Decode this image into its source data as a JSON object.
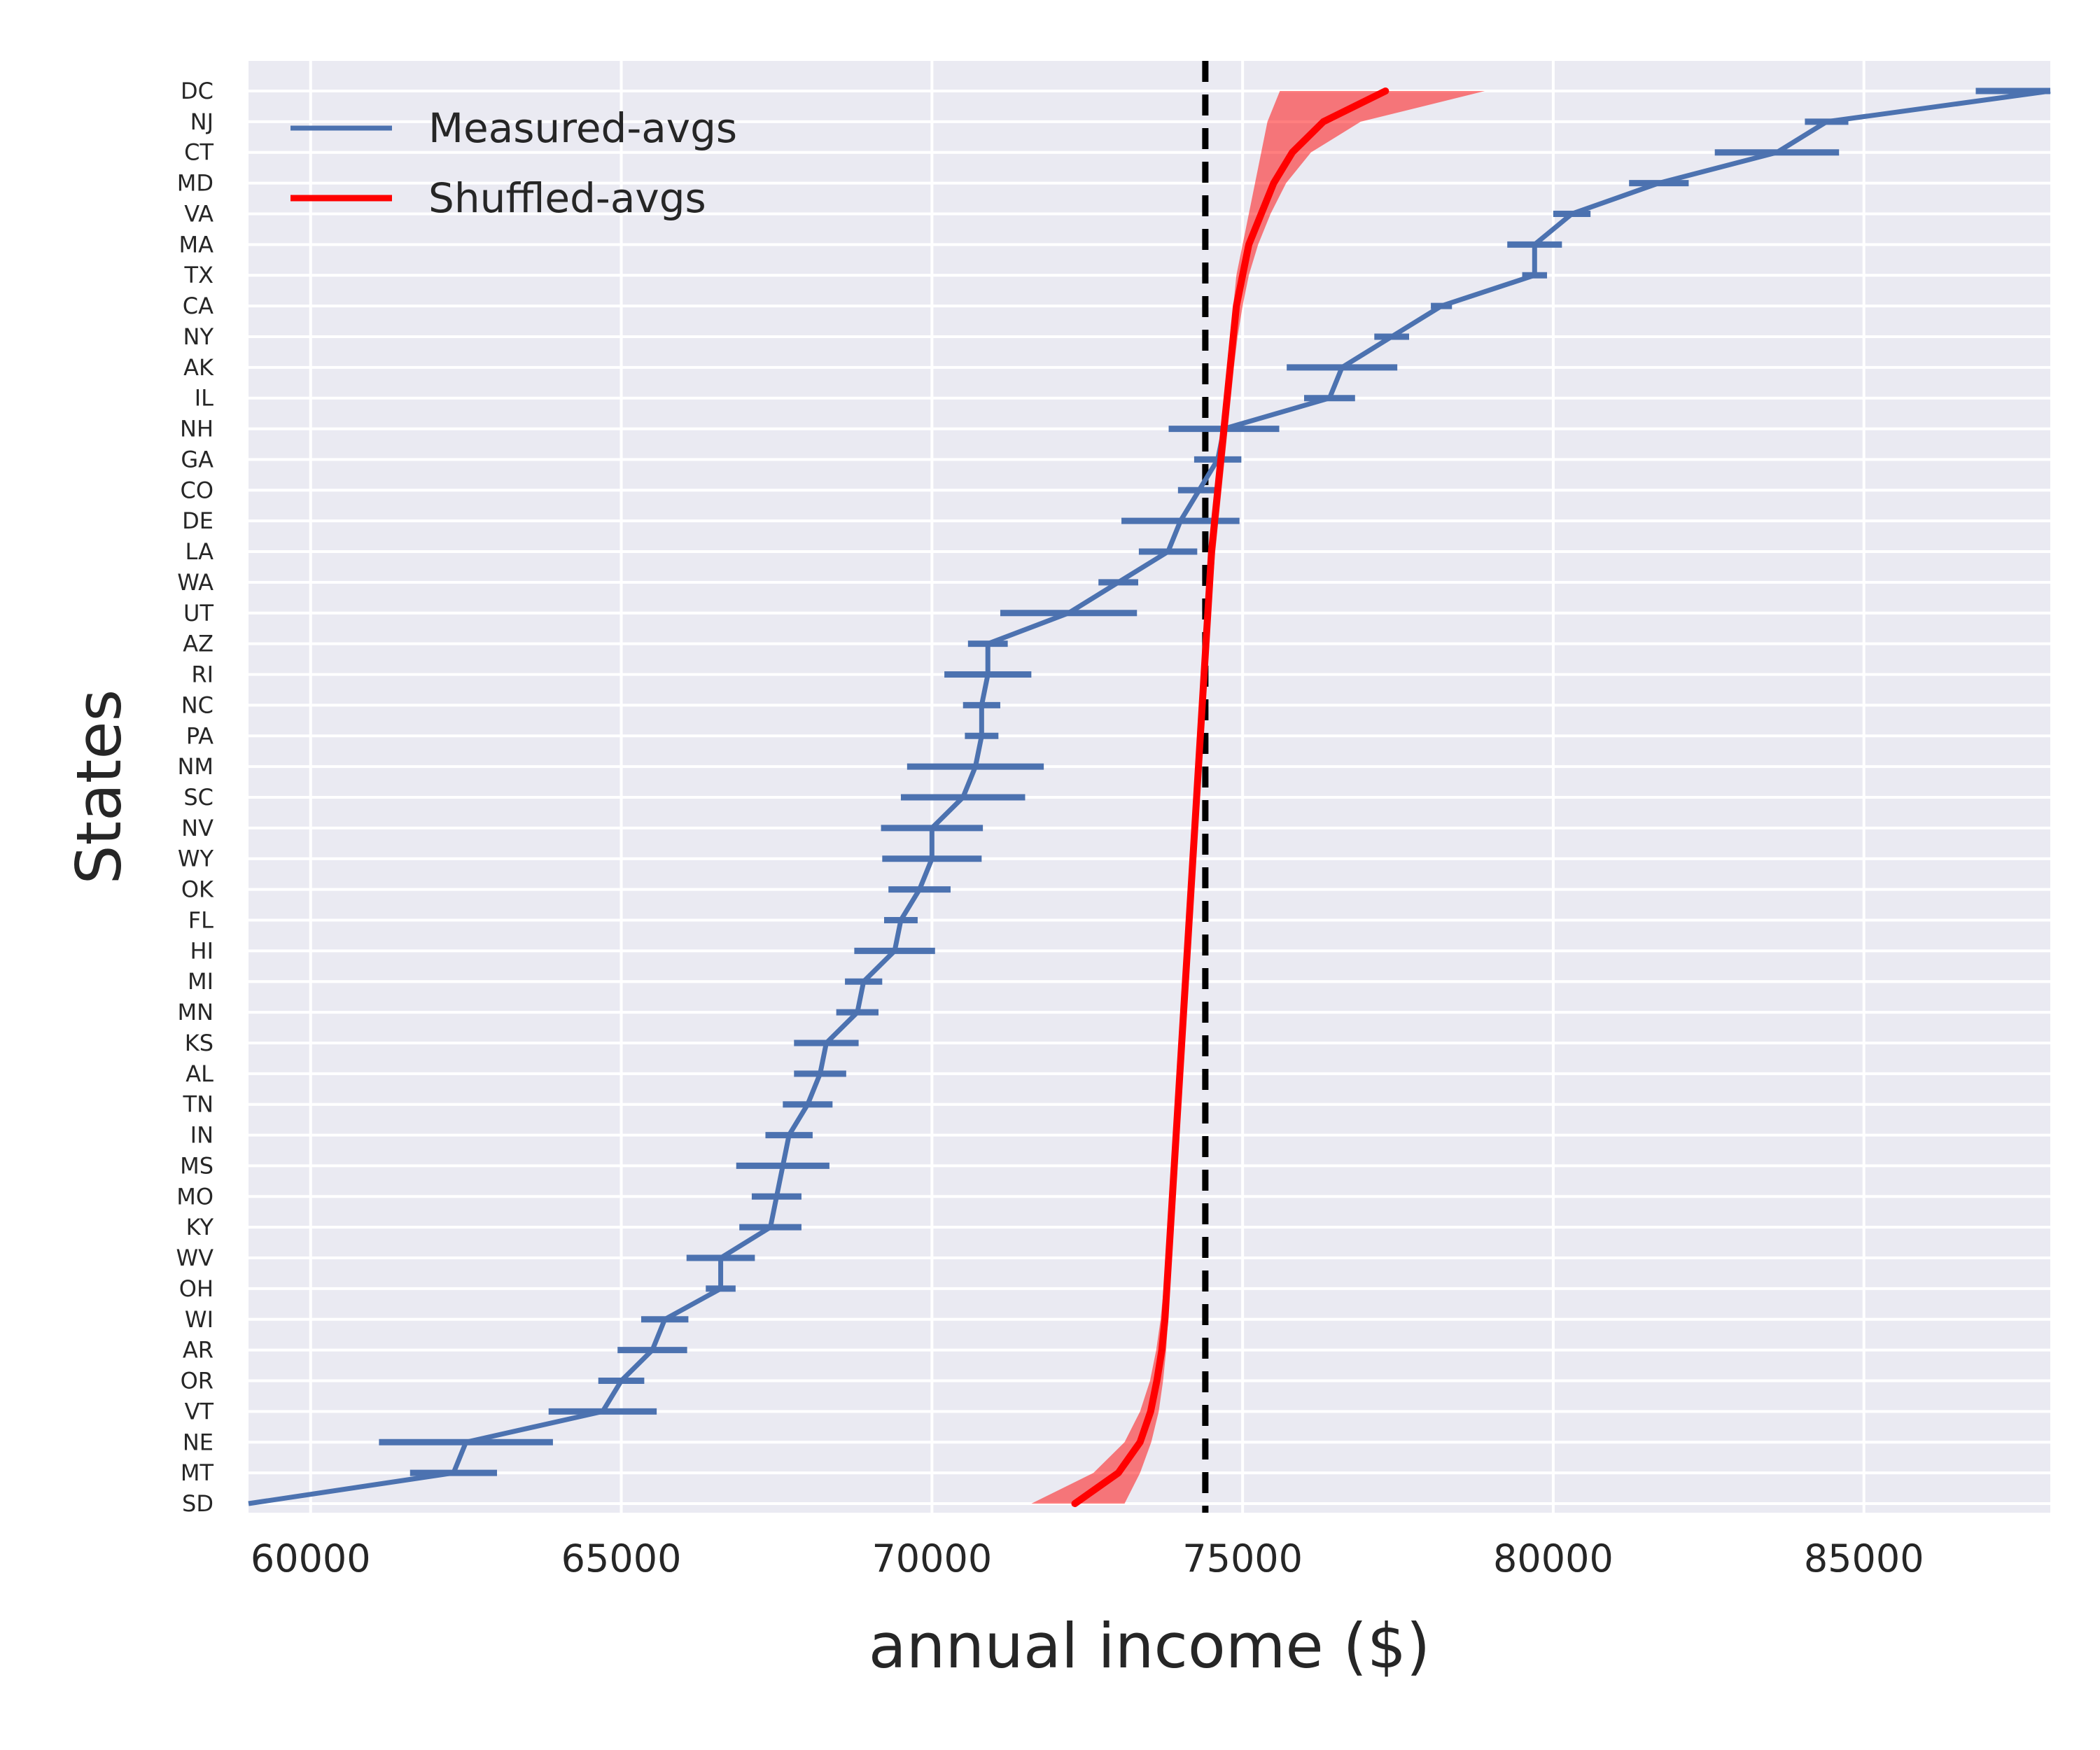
{
  "chart_data": {
    "type": "line",
    "orientation": "horizontal",
    "xlabel": "annual income ($)",
    "ylabel": "States",
    "xlim": [
      59000,
      88000
    ],
    "xticks": [
      60000,
      65000,
      70000,
      75000,
      80000,
      85000
    ],
    "grid": true,
    "legend_position": "top-left",
    "reference_line": {
      "x": 74400,
      "style": "dashed",
      "color": "#000000"
    },
    "categories": [
      "DC",
      "NJ",
      "CT",
      "MD",
      "VA",
      "MA",
      "TX",
      "CA",
      "NY",
      "AK",
      "IL",
      "NH",
      "GA",
      "CO",
      "DE",
      "LA",
      "WA",
      "UT",
      "AZ",
      "RI",
      "NC",
      "PA",
      "NM",
      "SC",
      "NV",
      "WY",
      "OK",
      "FL",
      "HI",
      "MI",
      "MN",
      "KS",
      "AL",
      "TN",
      "IN",
      "MS",
      "MO",
      "KY",
      "WV",
      "OH",
      "WI",
      "AR",
      "OR",
      "VT",
      "NE",
      "MT",
      "SD"
    ],
    "series": [
      {
        "name": "Measured-avgs",
        "color": "#4c72b0",
        "values": [
          88000,
          84400,
          83600,
          81700,
          80300,
          79700,
          79700,
          78200,
          77400,
          76600,
          76400,
          74700,
          74600,
          74300,
          74000,
          73800,
          73000,
          72200,
          70900,
          70900,
          70800,
          70800,
          70700,
          70500,
          70000,
          70000,
          69800,
          69500,
          69400,
          68900,
          68800,
          68300,
          68200,
          68000,
          67700,
          67600,
          67500,
          67400,
          66600,
          66600,
          65700,
          65500,
          65000,
          64700,
          62500,
          62300,
          59000
        ],
        "errors": [
          1200,
          350,
          1000,
          480,
          300,
          440,
          200,
          170,
          280,
          890,
          410,
          890,
          380,
          340,
          950,
          470,
          320,
          1100,
          320,
          700,
          300,
          270,
          1100,
          1000,
          820,
          800,
          500,
          270,
          650,
          300,
          340,
          520,
          420,
          400,
          380,
          750,
          400,
          500,
          550,
          240,
          380,
          560,
          370,
          870,
          1400,
          700,
          0
        ]
      },
      {
        "name": "Shuffled-avgs",
        "color": "#ff0000",
        "band_alpha": 0.5,
        "values": [
          77300,
          76300,
          75800,
          75500,
          75300,
          75100,
          75000,
          74900,
          74850,
          74800,
          74750,
          74700,
          74650,
          74600,
          74550,
          74500,
          74470,
          74440,
          74410,
          74380,
          74350,
          74320,
          74290,
          74260,
          74230,
          74200,
          74170,
          74140,
          74110,
          74080,
          74050,
          74020,
          73990,
          73960,
          73930,
          73900,
          73870,
          73840,
          73810,
          73780,
          73750,
          73700,
          73620,
          73520,
          73350,
          73000,
          72300
        ],
        "lower": [
          75600,
          75400,
          75300,
          75200,
          75100,
          75000,
          74900,
          74850,
          74800,
          74750,
          74700,
          74650,
          74600,
          74550,
          74500,
          74450,
          74420,
          74390,
          74360,
          74330,
          74300,
          74270,
          74240,
          74210,
          74180,
          74150,
          74120,
          74090,
          74060,
          74030,
          74000,
          73970,
          73940,
          73910,
          73880,
          73850,
          73820,
          73790,
          73760,
          73730,
          73680,
          73610,
          73510,
          73350,
          73100,
          72600,
          71600
        ],
        "upper": [
          78900,
          76900,
          76100,
          75700,
          75450,
          75250,
          75100,
          75000,
          74920,
          74860,
          74810,
          74760,
          74710,
          74660,
          74610,
          74560,
          74520,
          74490,
          74460,
          74430,
          74400,
          74370,
          74340,
          74310,
          74280,
          74250,
          74220,
          74190,
          74160,
          74130,
          74100,
          74070,
          74040,
          74010,
          73980,
          73950,
          73920,
          73890,
          73860,
          73830,
          73800,
          73770,
          73720,
          73650,
          73530,
          73350,
          73100
        ]
      }
    ]
  }
}
